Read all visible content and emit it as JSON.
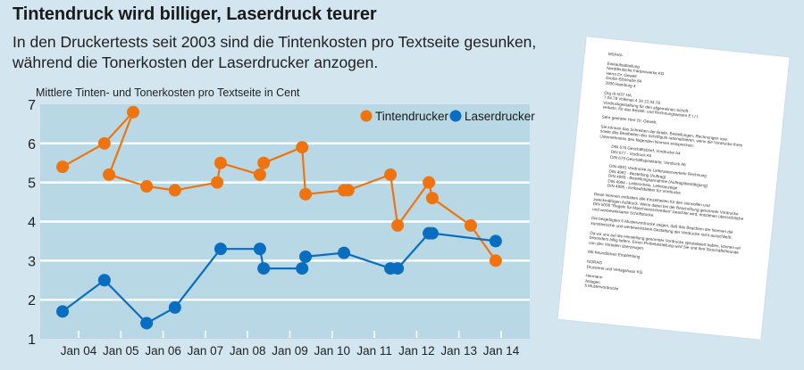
{
  "header": {
    "title": "Tintendruck wird billiger, Laserdruck teurer",
    "subtitle_lines": [
      "In den Druckertests seit 2003 sind die Tintenkosten pro Textseite gesunken,",
      "während die Tonerkosten der Laserdrucker anzogen."
    ]
  },
  "chart_data": {
    "type": "line",
    "title": "Mittlere Tinten- und Tonerkosten pro Textseite in Cent",
    "xlabel": "",
    "ylabel": "Mittlere Tinten- und Tonerkosten pro Textseite in Cent",
    "ylim": [
      1,
      7
    ],
    "yticks": [
      1,
      2,
      3,
      4,
      5,
      6,
      7
    ],
    "xlim": [
      2003.1,
      2014.5
    ],
    "xticks": [
      {
        "value": 2004,
        "label": "Jan 04"
      },
      {
        "value": 2005,
        "label": "Jan 05"
      },
      {
        "value": 2006,
        "label": "Jan 06"
      },
      {
        "value": 2007,
        "label": "Jan 07"
      },
      {
        "value": 2008,
        "label": "Jan 08"
      },
      {
        "value": 2009,
        "label": "Jan 09"
      },
      {
        "value": 2010,
        "label": "Jan 10"
      },
      {
        "value": 2011,
        "label": "Jan 11"
      },
      {
        "value": 2012,
        "label": "Jan 12"
      },
      {
        "value": 2013,
        "label": "Jan 13"
      },
      {
        "value": 2014,
        "label": "Jan 14"
      }
    ],
    "grid": true,
    "legend": {
      "placement": "top-right"
    },
    "series": [
      {
        "name": "Tintendrucker",
        "color": "#ef7410",
        "points": [
          [
            2003.62,
            5.4
          ],
          [
            2004.61,
            6.0
          ],
          [
            2005.29,
            6.8
          ],
          [
            2004.72,
            5.2
          ],
          [
            2005.61,
            4.9
          ],
          [
            2006.28,
            4.8
          ],
          [
            2007.28,
            5.0
          ],
          [
            2007.36,
            5.5
          ],
          [
            2008.29,
            5.2
          ],
          [
            2008.38,
            5.5
          ],
          [
            2009.29,
            5.9
          ],
          [
            2009.37,
            4.7
          ],
          [
            2010.28,
            4.8
          ],
          [
            2010.38,
            4.8
          ],
          [
            2011.38,
            5.2
          ],
          [
            2011.55,
            3.9
          ],
          [
            2012.29,
            5.0
          ],
          [
            2012.37,
            4.6
          ],
          [
            2013.28,
            3.9
          ],
          [
            2013.87,
            3.0
          ]
        ]
      },
      {
        "name": "Laserdrucker",
        "color": "#0a6ec0",
        "points": [
          [
            2003.62,
            1.7
          ],
          [
            2004.61,
            2.5
          ],
          [
            2005.61,
            1.4
          ],
          [
            2006.28,
            1.8
          ],
          [
            2007.36,
            3.3
          ],
          [
            2008.29,
            3.3
          ],
          [
            2008.38,
            2.8
          ],
          [
            2009.29,
            2.8
          ],
          [
            2009.37,
            3.1
          ],
          [
            2010.28,
            3.2
          ],
          [
            2011.38,
            2.8
          ],
          [
            2011.55,
            2.8
          ],
          [
            2012.29,
            3.7
          ],
          [
            2012.37,
            3.7
          ],
          [
            2013.87,
            3.5
          ]
        ]
      }
    ]
  },
  "document_image": {
    "lines": [
      "MS/Hö/-",
      "",
      "Einkaufsabteilung",
      "Norddeutsche Farbenwerke KG",
      "Herrn Dr. Gewelt",
      "Große Elbstraße 84",
      "2000 Hamburg 4",
      "",
      "Org III 5/37   HA",
      "7.04.78              Volkmas              4 34              22.04.78",
      "Vordruckgestaltung für den allgemeinen Schrift-",
      "verkehr, für das Bestell- und Rechnungswesen          E I / I",
      "",
      "Sehr geehrter Herr Dr. Gewelt,",
      "",
      "Sie können das Schreiben der Briefe, Bestellungen, Rechnungen usw.",
      "sowie das Bearbeiten des Schriftguts rationalisieren, wenn die Vordrucke Ihres",
      "Unternehmens den folgenden Normen entsprechen:",
      "",
      ">DIN 676 Geschäftsbrief, Vordrucke A4",
      ">DIN 677 - Vordruck A5",
      ">DIN 679 Geschäftspostkarte, Vordruck A6",
      "",
      ">DIN 4991 Vordrucke im Lieferantenverkehr Rechnung",
      ">DIN 4992 - Bestellung (Auftrag)",
      ">DIN 4993 - Bestellungsannahme (Auftragsbestätigung)",
      ">DIN 4994 - Lieferschein, Lieferanzeige",
      ">DIN 4995 - Einkaufsblätter für Vordrucke",
      "",
      "Diese Normen enthalten alle Einzelheiten für den sinnvollen und",
      "zweckmäßigen Aufdruck. Wenn dabei bei der Beschriftung genormter Vordrucke",
      "DIN 5008 \"Regeln für Maschinenschreiben\" beachtet wird, entstehen übersichtliche",
      "und werbewirksame Schriftstücke.",
      "",
      "Die beigefügten 6 Mustervordrucke zeigen, daß das Beachten der Normen die",
      "künstlerische und werbewirksame Gestaltung der Vordrucke nicht ausschließt.",
      "",
      "Da wir uns auf die Herstellung genormter Vordrucke spezialisiert haben, können wir",
      "besonders billig liefern. Einen Probebestellung wird Sie und Ihre Geschäftsfreunde",
      "von den Vorteilen überzeugen.",
      "",
      "Mit freundlichen Empfehlung",
      "",
      "NORAG",
      "Druckerei und Verlagshaus KG",
      "",
      "Hermann",
      "Anlagen",
      "6 Mustervordrucke"
    ]
  }
}
